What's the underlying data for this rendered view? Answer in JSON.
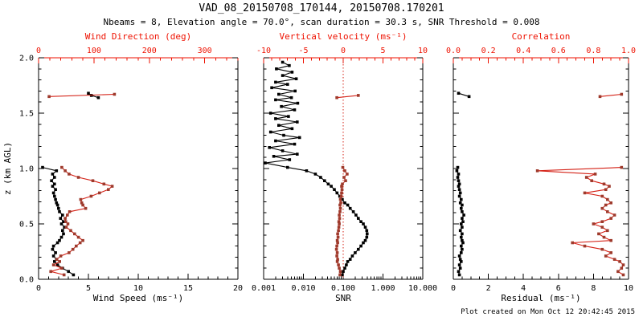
{
  "title": "VAD_08_20150708_170144, 20150708.170201",
  "subtitle": "Nbeams = 8, Elevation angle = 70.0°, scan duration = 30.3 s, SNR Threshold = 0.008",
  "credit": "Plot created on Mon Oct 12 20:42:45 2015",
  "colors": {
    "axis_red": "#ee1100",
    "data_red_line": "#d42015",
    "data_red_marker": "#9e3a2c",
    "black": "#000000",
    "background": "#ffffff"
  },
  "chart_data": {
    "type": "line",
    "description": "VAD lidar vertical profiles: three panels sharing height axis z (km AGL) 0-2",
    "y_axis": {
      "label": "z (km AGL)",
      "range": [
        0,
        2
      ],
      "ticks": [
        0,
        0.5,
        1,
        1.5,
        2
      ],
      "tick_labels": [
        "0.0",
        "0.5",
        "1.0",
        "1.5",
        "2.0"
      ],
      "minor_step": 0.1
    },
    "panels": [
      {
        "name": "wind",
        "top_axis": {
          "label": "Wind Direction (deg)",
          "scale": "linear",
          "range": [
            0,
            360
          ],
          "ticks": [
            0,
            100,
            200,
            300
          ],
          "tick_labels": [
            "0",
            "100",
            "200",
            "300"
          ],
          "minor_step": 20
        },
        "bottom_axis": {
          "label": "Wind Speed (ms⁻¹)",
          "scale": "linear",
          "range": [
            0,
            20
          ],
          "ticks": [
            0,
            5,
            10,
            15,
            20
          ],
          "tick_labels": [
            "0",
            "5",
            "10",
            "15",
            "20"
          ],
          "minor_step": 1
        },
        "series": [
          {
            "name": "wind-speed",
            "axis": "bottom",
            "color": "black",
            "segments": [
              {
                "z": [
                  0.04,
                  0.07,
                  0.1,
                  0.13,
                  0.16,
                  0.18,
                  0.21,
                  0.24,
                  0.27,
                  0.3,
                  0.33,
                  0.35,
                  0.38,
                  0.41,
                  0.44,
                  0.47,
                  0.5,
                  0.52,
                  0.55,
                  0.58,
                  0.61,
                  0.64,
                  0.67,
                  0.69,
                  0.72,
                  0.75,
                  0.78,
                  0.81,
                  0.84,
                  0.86,
                  0.89,
                  0.92,
                  0.95,
                  0.98,
                  1.01
                ],
                "v": [
                  3.5,
                  3.0,
                  2.4,
                  1.9,
                  1.6,
                  1.8,
                  1.5,
                  1.7,
                  1.4,
                  1.5,
                  1.9,
                  2.1,
                  2.3,
                  2.5,
                  2.4,
                  2.6,
                  2.3,
                  2.5,
                  2.2,
                  2.4,
                  2.1,
                  2.0,
                  1.9,
                  1.8,
                  1.7,
                  1.6,
                  1.5,
                  1.7,
                  1.4,
                  1.6,
                  1.3,
                  1.6,
                  1.4,
                  1.8,
                  0.4
                ]
              },
              {
                "z": [
                  1.64,
                  1.66,
                  1.68
                ],
                "v": [
                  6.0,
                  5.3,
                  5.0
                ]
              }
            ]
          },
          {
            "name": "wind-direction",
            "axis": "top",
            "color": "red",
            "segments": [
              {
                "z": [
                  0.04,
                  0.07,
                  0.1,
                  0.13,
                  0.16,
                  0.18,
                  0.21,
                  0.24,
                  0.27,
                  0.3,
                  0.33,
                  0.35,
                  0.38,
                  0.41,
                  0.44,
                  0.47,
                  0.5,
                  0.52,
                  0.55,
                  0.58,
                  0.61,
                  0.64,
                  0.67,
                  0.69,
                  0.72,
                  0.75,
                  0.78,
                  0.81,
                  0.84,
                  0.86,
                  0.89,
                  0.92,
                  0.95,
                  0.98,
                  1.01
                ],
                "v": [
                  46,
                  22,
                  42,
                  27,
                  38,
                  33,
                  40,
                  55,
                  62,
                  68,
                  75,
                  80,
                  72,
                  65,
                  58,
                  50,
                  53,
                  49,
                  48,
                  52,
                  56,
                  85,
                  80,
                  78,
                  76,
                  95,
                  110,
                  126,
                  133,
                  118,
                  98,
                  72,
                  55,
                  48,
                  42
                ]
              },
              {
                "z": [
                  1.65,
                  1.67
                ],
                "v": [
                  19,
                  137
                ]
              }
            ]
          }
        ]
      },
      {
        "name": "snr-vertical-velocity",
        "top_axis": {
          "label": "Vertical velocity (ms⁻¹)",
          "scale": "linear",
          "range": [
            -10,
            10
          ],
          "ticks": [
            -10,
            -5,
            0,
            5,
            10
          ],
          "tick_labels": [
            "-10",
            "-5",
            "0",
            "5",
            "10"
          ],
          "minor_step": 1,
          "zero_line": true
        },
        "bottom_axis": {
          "label": "SNR",
          "scale": "log",
          "range": [
            0.001,
            10
          ],
          "ticks": [
            0.001,
            0.01,
            0.1,
            1,
            10
          ],
          "tick_labels": [
            "0.001",
            "0.010",
            "0.100",
            "1.000",
            "10.000"
          ]
        },
        "series": [
          {
            "name": "snr",
            "axis": "bottom",
            "color": "black",
            "segments": [
              {
                "z": [
                  0.04,
                  0.07,
                  0.1,
                  0.13,
                  0.16,
                  0.18,
                  0.21,
                  0.24,
                  0.27,
                  0.3,
                  0.33,
                  0.35,
                  0.38,
                  0.41,
                  0.44,
                  0.47,
                  0.5,
                  0.52,
                  0.55,
                  0.58,
                  0.61,
                  0.64,
                  0.67,
                  0.69,
                  0.72,
                  0.75,
                  0.78,
                  0.81,
                  0.84,
                  0.86,
                  0.89,
                  0.92,
                  0.95,
                  0.98,
                  1.01,
                  1.05,
                  1.08,
                  1.11,
                  1.13,
                  1.16,
                  1.19,
                  1.22,
                  1.25,
                  1.28,
                  1.3,
                  1.33,
                  1.36,
                  1.39,
                  1.42,
                  1.45,
                  1.47,
                  1.5,
                  1.53,
                  1.56,
                  1.59,
                  1.62,
                  1.64,
                  1.67,
                  1.7,
                  1.73,
                  1.76,
                  1.78,
                  1.81,
                  1.84,
                  1.87,
                  1.9,
                  1.93,
                  1.96
                ],
                "v": [
                  0.095,
                  0.1,
                  0.11,
                  0.12,
                  0.13,
                  0.15,
                  0.17,
                  0.2,
                  0.24,
                  0.28,
                  0.32,
                  0.36,
                  0.39,
                  0.4,
                  0.39,
                  0.36,
                  0.32,
                  0.28,
                  0.24,
                  0.21,
                  0.18,
                  0.15,
                  0.13,
                  0.11,
                  0.095,
                  0.082,
                  0.07,
                  0.06,
                  0.05,
                  0.042,
                  0.034,
                  0.027,
                  0.02,
                  0.012,
                  0.004,
                  0.0011,
                  0.0045,
                  0.0018,
                  0.007,
                  0.003,
                  0.0014,
                  0.006,
                  0.002,
                  0.008,
                  0.0032,
                  0.0015,
                  0.0052,
                  0.0024,
                  0.007,
                  0.002,
                  0.0042,
                  0.0015,
                  0.006,
                  0.0028,
                  0.0072,
                  0.002,
                  0.005,
                  0.0024,
                  0.0062,
                  0.0016,
                  0.004,
                  0.002,
                  0.0066,
                  0.003,
                  0.0052,
                  0.0021,
                  0.0044,
                  0.003
                ]
              }
            ]
          },
          {
            "name": "vertical-velocity",
            "axis": "top",
            "color": "red",
            "segments": [
              {
                "z": [
                  0.04,
                  0.07,
                  0.1,
                  0.13,
                  0.16,
                  0.18,
                  0.21,
                  0.24,
                  0.27,
                  0.3,
                  0.33,
                  0.35,
                  0.38,
                  0.41,
                  0.44,
                  0.47,
                  0.5,
                  0.52,
                  0.55,
                  0.58,
                  0.61,
                  0.64,
                  0.67,
                  0.69,
                  0.72,
                  0.75,
                  0.78,
                  0.81,
                  0.84,
                  0.86,
                  0.89,
                  0.92,
                  0.95,
                  0.98,
                  1.01
                ],
                "v": [
                  -0.4,
                  -0.35,
                  -0.5,
                  -0.6,
                  -0.75,
                  -0.7,
                  -0.8,
                  -0.75,
                  -0.85,
                  -0.8,
                  -0.7,
                  -0.75,
                  -0.65,
                  -0.7,
                  -0.6,
                  -0.55,
                  -0.5,
                  -0.55,
                  -0.45,
                  -0.5,
                  -0.4,
                  -0.35,
                  -0.4,
                  -0.3,
                  -0.35,
                  -0.25,
                  -0.2,
                  -0.15,
                  -0.2,
                  -0.1,
                  0.3,
                  0.1,
                  0.5,
                  0.2,
                  -0.05
                ]
              },
              {
                "z": [
                  1.64,
                  1.66
                ],
                "v": [
                  -0.8,
                  1.9
                ]
              }
            ]
          }
        ]
      },
      {
        "name": "residual-correlation",
        "top_axis": {
          "label": "Correlation",
          "scale": "linear",
          "range": [
            0,
            1
          ],
          "ticks": [
            0,
            0.2,
            0.4,
            0.6,
            0.8,
            1
          ],
          "tick_labels": [
            "0.0",
            "0.2",
            "0.4",
            "0.6",
            "0.8",
            "1.0"
          ],
          "minor_step": 0.05
        },
        "bottom_axis": {
          "label": "Residual (ms⁻¹)",
          "scale": "linear",
          "range": [
            0,
            10
          ],
          "ticks": [
            0,
            2,
            4,
            6,
            8,
            10
          ],
          "tick_labels": [
            "0",
            "2",
            "4",
            "6",
            "8",
            "10"
          ],
          "minor_step": 0.5
        },
        "series": [
          {
            "name": "residual",
            "axis": "bottom",
            "color": "black",
            "segments": [
              {
                "z": [
                  0.04,
                  0.07,
                  0.1,
                  0.13,
                  0.16,
                  0.18,
                  0.21,
                  0.24,
                  0.27,
                  0.3,
                  0.33,
                  0.35,
                  0.38,
                  0.41,
                  0.44,
                  0.47,
                  0.5,
                  0.52,
                  0.55,
                  0.58,
                  0.61,
                  0.64,
                  0.67,
                  0.69,
                  0.72,
                  0.75,
                  0.78,
                  0.81,
                  0.84,
                  0.86,
                  0.89,
                  0.92,
                  0.95,
                  0.98,
                  1.01
                ],
                "v": [
                  0.35,
                  0.3,
                  0.4,
                  0.35,
                  0.45,
                  0.4,
                  0.35,
                  0.45,
                  0.5,
                  0.45,
                  0.55,
                  0.5,
                  0.45,
                  0.5,
                  0.4,
                  0.5,
                  0.45,
                  0.55,
                  0.5,
                  0.6,
                  0.5,
                  0.45,
                  0.5,
                  0.4,
                  0.45,
                  0.35,
                  0.4,
                  0.35,
                  0.3,
                  0.35,
                  0.3,
                  0.25,
                  0.3,
                  0.2,
                  0.25
                ]
              },
              {
                "z": [
                  1.65,
                  1.68
                ],
                "v": [
                  0.9,
                  0.3
                ]
              }
            ]
          },
          {
            "name": "correlation",
            "axis": "top",
            "color": "red",
            "segments": [
              {
                "z": [
                  0.04,
                  0.07,
                  0.1,
                  0.13,
                  0.16,
                  0.18,
                  0.21,
                  0.24,
                  0.27,
                  0.3,
                  0.33,
                  0.35,
                  0.38,
                  0.41,
                  0.44,
                  0.47,
                  0.5,
                  0.52,
                  0.55,
                  0.58,
                  0.61,
                  0.64,
                  0.67,
                  0.69,
                  0.72,
                  0.75,
                  0.78,
                  0.81,
                  0.84,
                  0.86,
                  0.89,
                  0.92,
                  0.95,
                  0.98,
                  1.01
                ],
                "v": [
                  0.97,
                  0.94,
                  0.96,
                  0.97,
                  0.95,
                  0.92,
                  0.87,
                  0.9,
                  0.85,
                  0.75,
                  0.68,
                  0.9,
                  0.86,
                  0.83,
                  0.88,
                  0.85,
                  0.8,
                  0.85,
                  0.9,
                  0.92,
                  0.88,
                  0.85,
                  0.87,
                  0.9,
                  0.88,
                  0.85,
                  0.75,
                  0.87,
                  0.89,
                  0.86,
                  0.79,
                  0.76,
                  0.81,
                  0.48,
                  0.96
                ]
              },
              {
                "z": [
                  1.65,
                  1.67
                ],
                "v": [
                  0.837,
                  0.96
                ]
              }
            ]
          }
        ]
      }
    ]
  }
}
